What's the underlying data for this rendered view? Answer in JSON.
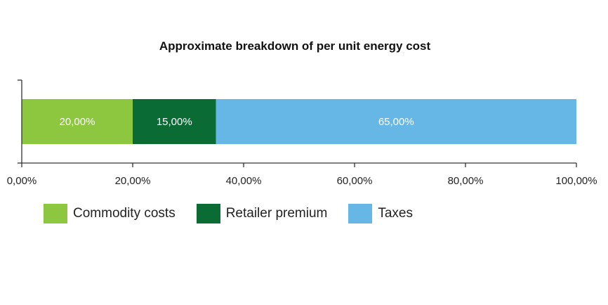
{
  "chart_data": {
    "type": "bar",
    "orientation": "horizontal",
    "stacked": true,
    "title": "Approximate breakdown of per unit energy cost",
    "xlabel": "",
    "ylabel": "",
    "xlim": [
      0,
      100
    ],
    "x_ticks": [
      0,
      20,
      40,
      60,
      80,
      100
    ],
    "x_tick_labels": [
      "0,00%",
      "20,00%",
      "40,00%",
      "60,00%",
      "80,00%",
      "100,00%"
    ],
    "grid": false,
    "legend_position": "bottom-left",
    "series": [
      {
        "name": "Commodity costs",
        "value": 20,
        "label": "20,00%",
        "color": "#8dc63f"
      },
      {
        "name": "Retailer premium",
        "value": 15,
        "label": "15,00%",
        "color": "#0b6b35"
      },
      {
        "name": "Taxes",
        "value": 65,
        "label": "65,00%",
        "color": "#66b7e6"
      }
    ]
  }
}
